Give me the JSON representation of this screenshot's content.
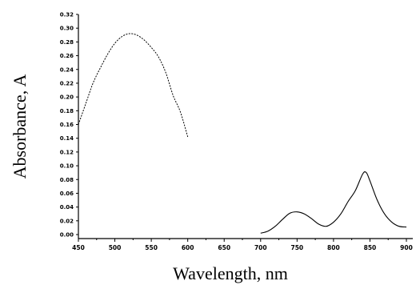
{
  "chart_data": {
    "type": "line",
    "title": "",
    "xlabel": "Wavelength, nm",
    "ylabel": "Absorbance, A",
    "xlim": [
      450,
      900
    ],
    "ylim": [
      0,
      0.32
    ],
    "x_ticks": [
      "450",
      "500",
      "550",
      "600",
      "650",
      "700",
      "750",
      "800",
      "850",
      "900"
    ],
    "y_ticks": [
      "0.00",
      "0.02",
      "0.04",
      "0.06",
      "0.08",
      "0.10",
      "0.12",
      "0.14",
      "0.16",
      "0.18",
      "0.20",
      "0.22",
      "0.24",
      "0.26",
      "0.28",
      "0.30",
      "0.32"
    ],
    "grid": false,
    "legend": "none",
    "series": [
      {
        "style": "dashed",
        "x": [
          450,
          460,
          470,
          480,
          490,
          500,
          510,
          520,
          530,
          540,
          550,
          560,
          570,
          580,
          590,
          600
        ],
        "y": [
          0.16,
          0.19,
          0.22,
          0.242,
          0.262,
          0.278,
          0.288,
          0.292,
          0.29,
          0.283,
          0.272,
          0.258,
          0.235,
          0.202,
          0.178,
          0.142
        ]
      },
      {
        "style": "solid",
        "x": [
          700,
          710,
          720,
          730,
          740,
          750,
          760,
          770,
          780,
          790,
          800,
          810,
          820,
          830,
          840,
          845,
          850,
          860,
          870,
          880,
          890,
          900
        ],
        "y": [
          0.002,
          0.005,
          0.012,
          0.022,
          0.031,
          0.033,
          0.03,
          0.023,
          0.015,
          0.012,
          0.018,
          0.03,
          0.048,
          0.064,
          0.088,
          0.09,
          0.078,
          0.05,
          0.03,
          0.018,
          0.012,
          0.011
        ]
      }
    ]
  }
}
